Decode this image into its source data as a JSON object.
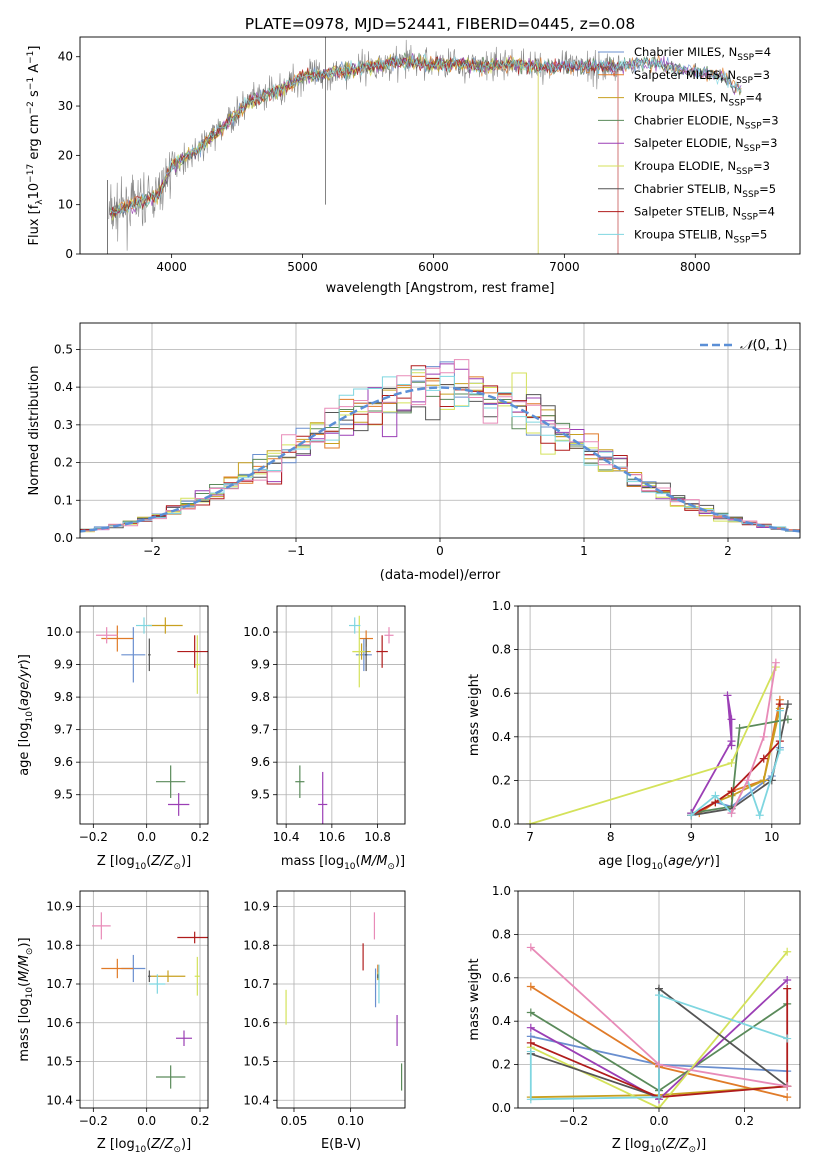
{
  "title": "PLATE=0978, MJD=52441, FIBERID=0445, z=0.08",
  "colors": {
    "series": [
      "#6a8fcf",
      "#e07b28",
      "#c8a020",
      "#5a8a5a",
      "#9b3fb5",
      "#d4e25a",
      "#555555",
      "#b01c1c",
      "#7fd6e0",
      "#e88bb8"
    ]
  },
  "chart_data": [
    {
      "type": "line",
      "xlabel": "wavelength [Angstrom, rest frame]",
      "ylabel": "Flux [f_λ10^-17 erg cm^-2 s^-1 A^-1]",
      "xlim": [
        3300,
        8800
      ],
      "ylim": [
        0,
        44
      ],
      "xticks": [
        "4000",
        "5000",
        "6000",
        "7000",
        "8000"
      ],
      "yticks": [
        "0",
        "10",
        "20",
        "30",
        "40"
      ],
      "series": [
        {
          "name": "Chabrier MILES, N_SSP=4"
        },
        {
          "name": "Salpeter MILES, N_SSP=3"
        },
        {
          "name": "Kroupa MILES, N_SSP=4"
        },
        {
          "name": "Chabrier ELODIE, N_SSP=3"
        },
        {
          "name": "Salpeter ELODIE, N_SSP=3"
        },
        {
          "name": "Kroupa ELODIE, N_SSP=3"
        },
        {
          "name": "Chabrier STELIB, N_SSP=5"
        },
        {
          "name": "Salpeter STELIB, N_SSP=4"
        },
        {
          "name": "Kroupa STELIB, N_SSP=5"
        }
      ],
      "continuum": {
        "x": [
          3500,
          3700,
          3900,
          4000,
          4200,
          4400,
          4600,
          4800,
          5000,
          5200,
          5400,
          5600,
          5800,
          6000,
          6200,
          6400,
          6600,
          6800,
          7000,
          7200,
          7400,
          7600,
          7800,
          8000,
          8200,
          8400
        ],
        "y": [
          8,
          10,
          12,
          18,
          21,
          26,
          31,
          33,
          36,
          36.5,
          37.5,
          38.5,
          39,
          38.5,
          38.5,
          38,
          38.5,
          38,
          38,
          38,
          38,
          39,
          38,
          37,
          36,
          32
        ]
      }
    },
    {
      "type": "bar",
      "xlabel": "(data-model)/error",
      "ylabel": "Normed distribution",
      "xlim": [
        -2.5,
        2.5
      ],
      "ylim": [
        0,
        0.57
      ],
      "xticks": [
        "−2",
        "−1",
        "0",
        "1",
        "2"
      ],
      "yticks": [
        "0.0",
        "0.1",
        "0.2",
        "0.3",
        "0.4",
        "0.5"
      ],
      "legend": "N(0, 1)",
      "bin_width": 0.1
    },
    {
      "type": "scatter",
      "xlabel": "Z [log10(Z/Z⊙)]",
      "ylabel": "age [log10(age/yr)]",
      "xlim": [
        -0.25,
        0.23
      ],
      "ylim": [
        9.41,
        10.08
      ],
      "xticks": [
        "−0.2",
        "0.0",
        "0.2"
      ],
      "yticks": [
        "9.5",
        "9.6",
        "9.7",
        "9.8",
        "9.9",
        "10.0"
      ],
      "points": [
        {
          "x": -0.05,
          "y": 9.93,
          "dx": 0.09,
          "dy": 0.17
        },
        {
          "x": -0.11,
          "y": 9.98,
          "dx": 0.12,
          "dy": 0.08
        },
        {
          "x": 0.07,
          "y": 10.02,
          "dx": 0.13,
          "dy": 0.05
        },
        {
          "x": 0.09,
          "y": 9.54,
          "dx": 0.11,
          "dy": 0.1
        },
        {
          "x": 0.12,
          "y": 9.47,
          "dx": 0.08,
          "dy": 0.07
        },
        {
          "x": 0.19,
          "y": 9.9,
          "dx": 0.02,
          "dy": 0.18
        },
        {
          "x": 0.01,
          "y": 9.93,
          "dx": 0.01,
          "dy": 0.1
        },
        {
          "x": 0.18,
          "y": 9.94,
          "dx": 0.13,
          "dy": 0.1
        },
        {
          "x": -0.01,
          "y": 10.02,
          "dx": 0.06,
          "dy": 0.05
        },
        {
          "x": -0.15,
          "y": 9.99,
          "dx": 0.08,
          "dy": 0.05
        }
      ]
    },
    {
      "type": "scatter",
      "xlabel": "mass [log10(M/M⊙)]",
      "ylabel": "",
      "xlim": [
        10.36,
        10.92
      ],
      "ylim": [
        9.41,
        10.08
      ],
      "xticks": [
        "10.4",
        "10.6",
        "10.8"
      ],
      "yticks": [
        "9.5",
        "9.6",
        "9.7",
        "9.8",
        "9.9",
        "10.0"
      ],
      "points": [
        {
          "x": 10.74,
          "y": 9.93,
          "dx": 0.07,
          "dy": 0.1
        },
        {
          "x": 10.75,
          "y": 9.98,
          "dx": 0.06,
          "dy": 0.05
        },
        {
          "x": 10.73,
          "y": 9.94,
          "dx": 0.08,
          "dy": 0.05
        },
        {
          "x": 10.46,
          "y": 9.54,
          "dx": 0.04,
          "dy": 0.1
        },
        {
          "x": 10.56,
          "y": 9.47,
          "dx": 0.04,
          "dy": 0.2
        },
        {
          "x": 10.72,
          "y": 9.94,
          "dx": 0.06,
          "dy": 0.22
        },
        {
          "x": 10.75,
          "y": 9.93,
          "dx": 0.01,
          "dy": 0.1
        },
        {
          "x": 10.82,
          "y": 9.94,
          "dx": 0.05,
          "dy": 0.1
        },
        {
          "x": 10.7,
          "y": 10.02,
          "dx": 0.05,
          "dy": 0.05
        },
        {
          "x": 10.85,
          "y": 9.99,
          "dx": 0.04,
          "dy": 0.05
        }
      ]
    },
    {
      "type": "line",
      "xlabel": "age [log10(age/yr)]",
      "ylabel": "mass weight",
      "xlim": [
        6.85,
        10.35
      ],
      "ylim": [
        0,
        1
      ],
      "xticks": [
        "7",
        "8",
        "9",
        "10"
      ],
      "yticks": [
        "0.0",
        "0.2",
        "0.4",
        "0.6",
        "0.8",
        "1.0"
      ],
      "series": [
        {
          "x": [
            9.0,
            9.3,
            9.5,
            10.0,
            10.1
          ],
          "y": [
            0.04,
            0.1,
            0.08,
            0.22,
            0.35
          ]
        },
        {
          "x": [
            9.1,
            9.3,
            9.5,
            9.9,
            10.1
          ],
          "y": [
            0.05,
            0.1,
            0.15,
            0.2,
            0.57
          ]
        },
        {
          "x": [
            9.3,
            9.5,
            9.9,
            10.1
          ],
          "y": [
            0.1,
            0.13,
            0.2,
            0.53
          ]
        },
        {
          "x": [
            9.0,
            9.5,
            9.6,
            10.2
          ],
          "y": [
            0.05,
            0.08,
            0.44,
            0.48
          ]
        },
        {
          "x": [
            9.0,
            9.5,
            9.45,
            9.5,
            9.5
          ],
          "y": [
            0.05,
            0.38,
            0.59,
            0.48,
            0.36
          ]
        },
        {
          "x": [
            7.0,
            9.5,
            10.05
          ],
          "y": [
            0.0,
            0.28,
            0.72
          ]
        },
        {
          "x": [
            9.0,
            9.5,
            10.0,
            10.2
          ],
          "y": [
            0.04,
            0.07,
            0.2,
            0.55
          ]
        },
        {
          "x": [
            9.0,
            9.3,
            9.5,
            9.9,
            10.1,
            10.1
          ],
          "y": [
            0.04,
            0.1,
            0.15,
            0.3,
            0.38,
            0.55
          ]
        },
        {
          "x": [
            9.0,
            9.3,
            9.5,
            9.7,
            9.85,
            10.1,
            10.1
          ],
          "y": [
            0.04,
            0.13,
            0.05,
            0.2,
            0.04,
            0.34,
            0.52
          ]
        },
        {
          "x": [
            9.5,
            9.7,
            9.9,
            10.05
          ],
          "y": [
            0.05,
            0.2,
            0.4,
            0.74
          ]
        }
      ]
    },
    {
      "type": "scatter",
      "xlabel": "Z [log10(Z/Z⊙)]",
      "ylabel": "mass [log10(M/M⊙)]",
      "xlim": [
        -0.25,
        0.23
      ],
      "ylim": [
        10.38,
        10.94
      ],
      "xticks": [
        "−0.2",
        "0.0",
        "0.2"
      ],
      "yticks": [
        "10.4",
        "10.5",
        "10.6",
        "10.7",
        "10.8",
        "10.9"
      ],
      "points": [
        {
          "x": -0.05,
          "y": 10.74,
          "dx": 0.09,
          "dy": 0.07
        },
        {
          "x": -0.11,
          "y": 10.74,
          "dx": 0.12,
          "dy": 0.05
        },
        {
          "x": 0.08,
          "y": 10.72,
          "dx": 0.13,
          "dy": 0.03
        },
        {
          "x": 0.09,
          "y": 10.46,
          "dx": 0.11,
          "dy": 0.06
        },
        {
          "x": 0.14,
          "y": 10.56,
          "dx": 0.06,
          "dy": 0.04
        },
        {
          "x": 0.19,
          "y": 10.72,
          "dx": 0.02,
          "dy": 0.1
        },
        {
          "x": 0.01,
          "y": 10.72,
          "dx": 0.01,
          "dy": 0.03
        },
        {
          "x": 0.18,
          "y": 10.82,
          "dx": 0.13,
          "dy": 0.03
        },
        {
          "x": 0.04,
          "y": 10.7,
          "dx": 0.06,
          "dy": 0.05
        },
        {
          "x": -0.17,
          "y": 10.85,
          "dx": 0.07,
          "dy": 0.07
        }
      ]
    },
    {
      "type": "scatter",
      "xlabel": "E(B-V)",
      "ylabel": "",
      "xlim": [
        0.035,
        0.148
      ],
      "ylim": [
        10.38,
        10.94
      ],
      "xticks": [
        "0.05",
        "0.10"
      ],
      "yticks": [
        "10.4",
        "10.5",
        "10.6",
        "10.7",
        "10.8",
        "10.9"
      ],
      "points": [
        {
          "x": 0.122,
          "y": 10.69,
          "dx": 0.0,
          "dy": 0.1
        },
        {
          "x": 0.124,
          "y": 10.74,
          "dx": 0.0,
          "dy": 0.02
        },
        {
          "x": 0.124,
          "y": 10.72,
          "dx": 0.0,
          "dy": 0.02
        },
        {
          "x": 0.145,
          "y": 10.46,
          "dx": 0.0,
          "dy": 0.07
        },
        {
          "x": 0.141,
          "y": 10.58,
          "dx": 0.0,
          "dy": 0.08
        },
        {
          "x": 0.043,
          "y": 10.64,
          "dx": 0.0,
          "dy": 0.09
        },
        {
          "x": 0.124,
          "y": 10.72,
          "dx": 0.0,
          "dy": 0.01
        },
        {
          "x": 0.111,
          "y": 10.77,
          "dx": 0.0,
          "dy": 0.07
        },
        {
          "x": 0.125,
          "y": 10.7,
          "dx": 0.0,
          "dy": 0.1
        },
        {
          "x": 0.121,
          "y": 10.85,
          "dx": 0.0,
          "dy": 0.07
        }
      ]
    },
    {
      "type": "line",
      "xlabel": "Z [log10(Z/Z⊙)]",
      "ylabel": "mass weight",
      "xlim": [
        -0.33,
        0.33
      ],
      "ylim": [
        0,
        1
      ],
      "xticks": [
        "−0.2",
        "0.0",
        "0.2"
      ],
      "yticks": [
        "0.0",
        "0.2",
        "0.4",
        "0.6",
        "0.8",
        "1.0"
      ],
      "series": [
        {
          "x": [
            -0.3,
            0.0,
            0.3
          ],
          "y": [
            0.33,
            0.2,
            0.17
          ]
        },
        {
          "x": [
            -0.3,
            0.0,
            0.3
          ],
          "y": [
            0.56,
            0.19,
            0.05
          ]
        },
        {
          "x": [
            -0.3,
            0.0,
            0.3
          ],
          "y": [
            0.05,
            0.06,
            0.1
          ]
        },
        {
          "x": [
            -0.3,
            0.0,
            0.3
          ],
          "y": [
            0.44,
            0.08,
            0.48
          ]
        },
        {
          "x": [
            -0.3,
            0.0,
            0.3
          ],
          "y": [
            0.37,
            0.04,
            0.59
          ]
        },
        {
          "x": [
            -0.3,
            0.0,
            0.3
          ],
          "y": [
            0.28,
            0.0,
            0.72
          ]
        },
        {
          "x": [
            -0.3,
            0.0,
            0.0,
            0.3
          ],
          "y": [
            0.25,
            0.05,
            0.55,
            0.1
          ]
        },
        {
          "x": [
            -0.3,
            0.0,
            0.3,
            0.3
          ],
          "y": [
            0.3,
            0.05,
            0.1,
            0.55
          ]
        },
        {
          "x": [
            -0.3,
            -0.3,
            0.0,
            0.0,
            0.3
          ],
          "y": [
            0.26,
            0.04,
            0.05,
            0.52,
            0.32
          ]
        },
        {
          "x": [
            -0.3,
            0.0,
            0.3
          ],
          "y": [
            0.74,
            0.2,
            0.1
          ]
        }
      ]
    }
  ]
}
